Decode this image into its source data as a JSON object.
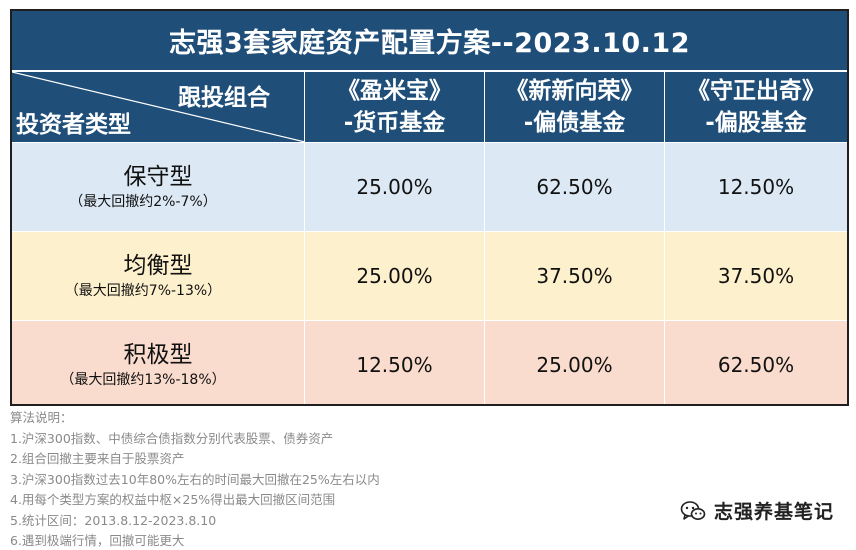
{
  "title": "志强3套家庭资产配置方案--2023.10.12",
  "header": {
    "diag_top": "跟投组合",
    "diag_bottom": "投资者类型",
    "columns": [
      {
        "line1": "《盈米宝》",
        "line2": "-货币基金"
      },
      {
        "line1": "《新新向荣》",
        "line2": "-偏债基金"
      },
      {
        "line1": "《守正出奇》",
        "line2": "-偏股基金"
      }
    ]
  },
  "rows": [
    {
      "type": "保守型",
      "note": "（最大回撤约2%-7%）",
      "values": [
        "25.00%",
        "62.50%",
        "12.50%"
      ]
    },
    {
      "type": "均衡型",
      "note": "（最大回撤约7%-13%）",
      "values": [
        "25.00%",
        "37.50%",
        "37.50%"
      ]
    },
    {
      "type": "积极型",
      "note": "（最大回撤约13%-18%）",
      "values": [
        "12.50%",
        "25.00%",
        "62.50%"
      ]
    }
  ],
  "notes": [
    "算法说明：",
    "1.沪深300指数、中债综合债指数分别代表股票、债券资产",
    "2.组合回撤主要来自于股票资产",
    "3.沪深300指数过去10年80%左右的时间最大回撤在25%左右以内",
    "4.用每个类型方案的权益中枢×25%得出最大回撤区间范围",
    "5.统计区间：2013.8.12-2023.8.10",
    "6.遇到极端行情，回撤可能更大"
  ],
  "watermark": {
    "text": "志强养基笔记",
    "icon": "wechat-icon"
  },
  "colors": {
    "header_bg": "#1f4e79",
    "row_conservative": "#dce9f5",
    "row_balanced": "#fdf0cc",
    "row_aggressive": "#f9dccd"
  }
}
